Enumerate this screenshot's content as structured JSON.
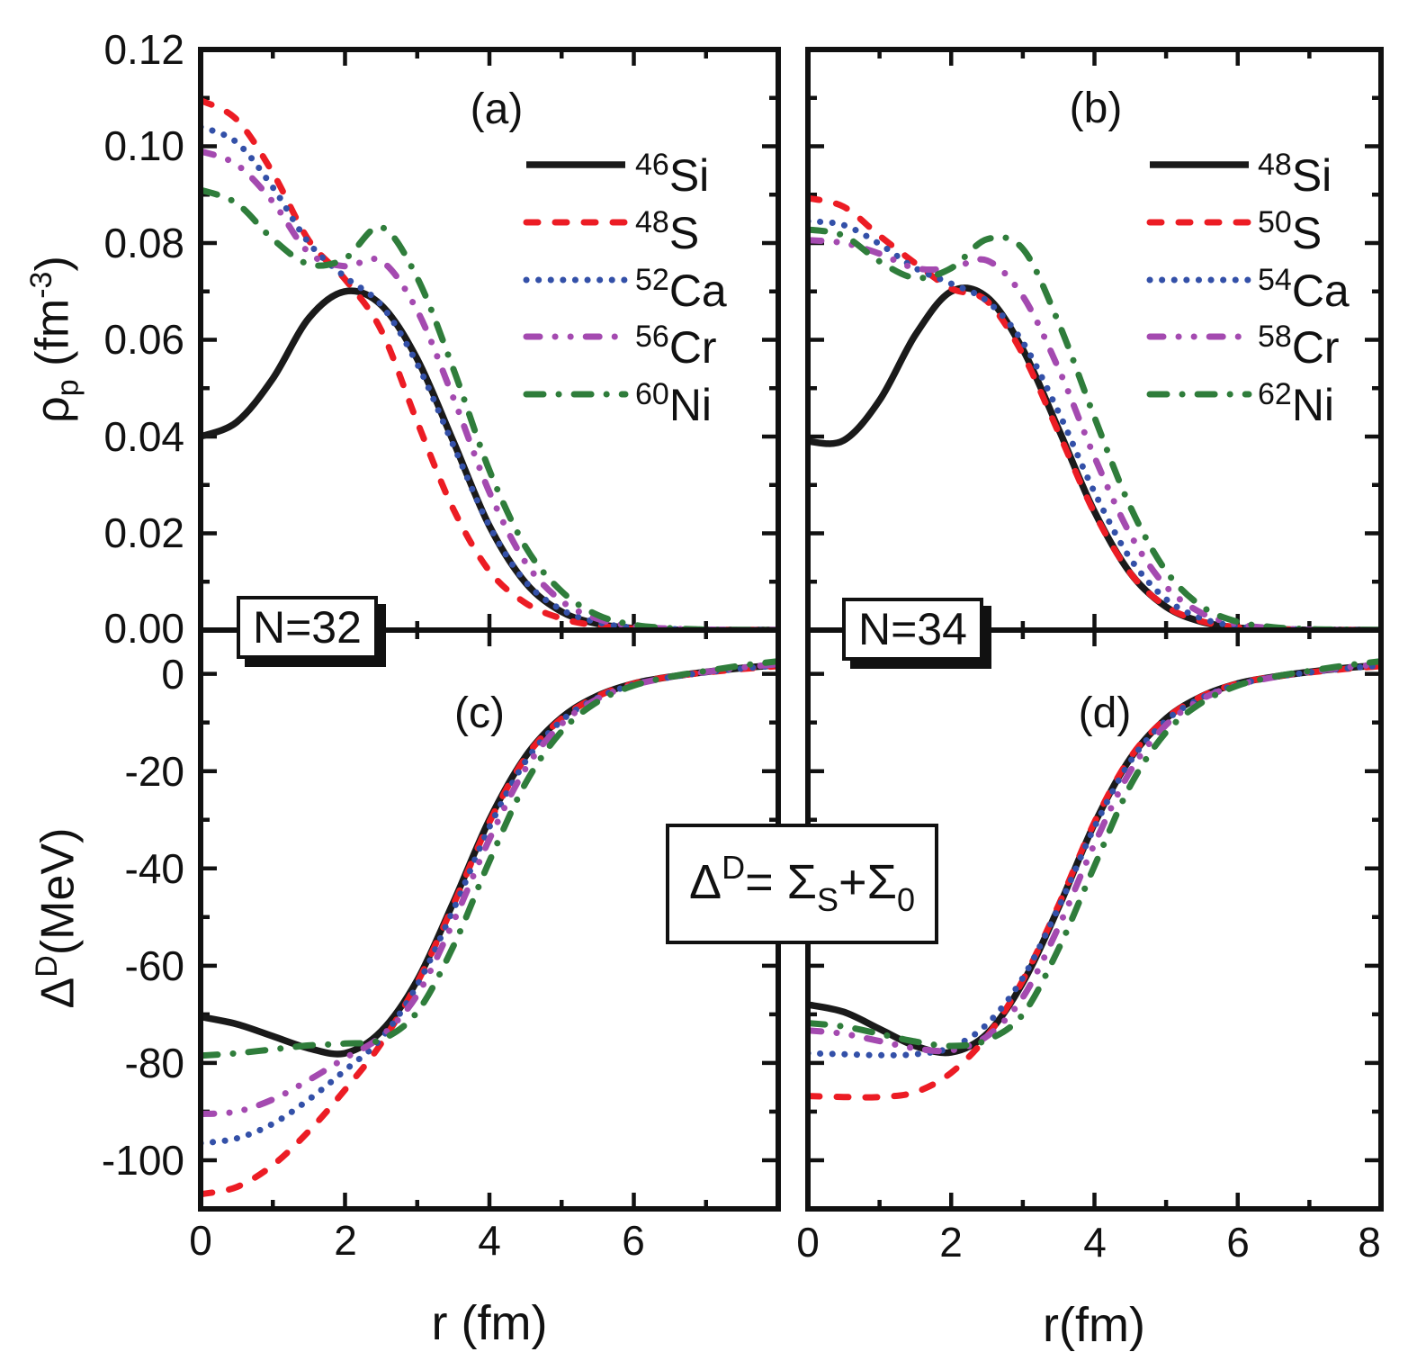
{
  "figure": {
    "panel_labels": {
      "a": "(a)",
      "b": "(b)",
      "c": "(c)",
      "d": "(d)"
    },
    "n32_label": "N=32",
    "n34_label": "N=34",
    "formula": {
      "delta": "Δ",
      "delta_sup": "D",
      "equals": "= ",
      "sigma_s": "Σ",
      "sigma_s_sub": "S",
      "plus": "+",
      "sigma_0": "Σ",
      "sigma_0_sub": "0"
    }
  },
  "axes": {
    "rho_ticks": [
      "0.12",
      "0.10",
      "0.08",
      "0.06",
      "0.04",
      "0.02",
      "0.00"
    ],
    "delta_ticks": [
      "0",
      "-20",
      "-40",
      "-60",
      "-80",
      "-100"
    ],
    "x_ticks_left": [
      "0",
      "2",
      "4",
      "6"
    ],
    "x_ticks_right": [
      "0",
      "2",
      "4",
      "6",
      "8"
    ],
    "rho_title": {
      "rho": "ρ",
      "sub": "p",
      "mid": " (fm",
      "sup": "-3",
      "end": ")"
    },
    "delta_title": {
      "delta": "Δ",
      "sup": "D",
      "rest": "(MeV)"
    },
    "x_title_left": "r (fm)",
    "x_title_right": "r(fm)"
  },
  "legend": {
    "n32": [
      {
        "mass": "46",
        "element": "Si"
      },
      {
        "mass": "48",
        "element": "S"
      },
      {
        "mass": "52",
        "element": "Ca"
      },
      {
        "mass": "56",
        "element": "Cr"
      },
      {
        "mass": "60",
        "element": "Ni"
      }
    ],
    "n34": [
      {
        "mass": "48",
        "element": "Si"
      },
      {
        "mass": "50",
        "element": "S"
      },
      {
        "mass": "54",
        "element": "Ca"
      },
      {
        "mass": "58",
        "element": "Cr"
      },
      {
        "mass": "62",
        "element": "Ni"
      }
    ]
  },
  "colors": {
    "si": "#1a1a1a",
    "s": "#ec1c24",
    "ca": "#3350a8",
    "cr": "#a44ab0",
    "ni": "#2f7d3b"
  },
  "chart_data": [
    {
      "type": "line",
      "panel_label": "(a)",
      "group": "N=32",
      "xlabel": "r (fm)",
      "ylabel": "rho_p (fm^-3)",
      "xlim": [
        0,
        8
      ],
      "ylim": [
        0,
        0.12
      ],
      "legend_position": "upper right",
      "x": [
        0,
        0.5,
        1,
        1.5,
        2,
        2.5,
        3,
        3.5,
        4,
        4.5,
        5,
        5.5,
        6,
        6.5,
        7,
        7.5,
        8
      ],
      "series": [
        {
          "name": "46Si",
          "color": "#1a1a1a",
          "style": "solid",
          "values": [
            0.04,
            0.043,
            0.052,
            0.0645,
            0.07,
            0.0672,
            0.056,
            0.039,
            0.0215,
            0.0098,
            0.0038,
            0.0013,
            0.0004,
            0.0001,
            0,
            0,
            0
          ]
        },
        {
          "name": "48S",
          "color": "#ec1c24",
          "style": "dashed",
          "values": [
            0.1095,
            0.1055,
            0.0945,
            0.0805,
            0.0725,
            0.062,
            0.043,
            0.025,
            0.0122,
            0.0056,
            0.0024,
            0.0009,
            0.0003,
            0.0001,
            0,
            0,
            0
          ]
        },
        {
          "name": "52Ca",
          "color": "#3350a8",
          "style": "dotted",
          "values": [
            0.104,
            0.1008,
            0.0915,
            0.08,
            0.073,
            0.0672,
            0.055,
            0.0382,
            0.0215,
            0.01,
            0.0042,
            0.0016,
            0.0005,
            0.0002,
            0.0001,
            0,
            0
          ]
        },
        {
          "name": "56Cr",
          "color": "#a44ab0",
          "style": "dashdotdot",
          "values": [
            0.099,
            0.0962,
            0.0885,
            0.078,
            0.0752,
            0.0763,
            0.066,
            0.048,
            0.0285,
            0.014,
            0.006,
            0.0023,
            0.0008,
            0.0003,
            0.0001,
            0,
            0
          ]
        },
        {
          "name": "60Ni",
          "color": "#2f7d3b",
          "style": "dashdot",
          "values": [
            0.091,
            0.0882,
            0.0808,
            0.0756,
            0.0768,
            0.0833,
            0.0728,
            0.054,
            0.033,
            0.0172,
            0.008,
            0.0031,
            0.0011,
            0.0004,
            0.0001,
            0,
            0
          ]
        }
      ]
    },
    {
      "type": "line",
      "panel_label": "(b)",
      "group": "N=34",
      "xlabel": "r(fm)",
      "ylabel": "rho_p (fm^-3)",
      "xlim": [
        0,
        8
      ],
      "ylim": [
        0,
        0.12
      ],
      "legend_position": "upper right",
      "x": [
        0,
        0.5,
        1,
        1.5,
        2,
        2.5,
        3,
        3.5,
        4,
        4.5,
        5,
        5.5,
        6,
        6.5,
        7,
        7.5,
        8
      ],
      "series": [
        {
          "name": "48Si",
          "color": "#1a1a1a",
          "style": "solid",
          "values": [
            0.039,
            0.0392,
            0.0475,
            0.061,
            0.07,
            0.0688,
            0.058,
            0.0415,
            0.0245,
            0.0118,
            0.0048,
            0.0017,
            0.0005,
            0.0002,
            0,
            0,
            0
          ]
        },
        {
          "name": "50S",
          "color": "#ec1c24",
          "style": "dashed",
          "values": [
            0.0893,
            0.0875,
            0.0815,
            0.0758,
            0.0706,
            0.068,
            0.057,
            0.0408,
            0.0242,
            0.0118,
            0.0049,
            0.0018,
            0.0006,
            0.0002,
            0,
            0,
            0
          ]
        },
        {
          "name": "54Ca",
          "color": "#3350a8",
          "style": "dotted",
          "values": [
            0.0845,
            0.0837,
            0.0798,
            0.0748,
            0.0716,
            0.068,
            0.0595,
            0.045,
            0.0285,
            0.0148,
            0.0064,
            0.0024,
            0.0008,
            0.0003,
            0.0001,
            0,
            0
          ]
        },
        {
          "name": "58Cr",
          "color": "#a44ab0",
          "style": "dashdotdot",
          "values": [
            0.0806,
            0.08,
            0.0778,
            0.0748,
            0.0748,
            0.0764,
            0.069,
            0.054,
            0.0358,
            0.0198,
            0.009,
            0.0035,
            0.0012,
            0.0004,
            0.0001,
            0,
            0
          ]
        },
        {
          "name": "62Ni",
          "color": "#2f7d3b",
          "style": "dashdot",
          "values": [
            0.0828,
            0.0815,
            0.0762,
            0.0728,
            0.0748,
            0.0808,
            0.0788,
            0.0635,
            0.044,
            0.0255,
            0.0122,
            0.0049,
            0.0017,
            0.0006,
            0.0002,
            0.0001,
            0
          ]
        }
      ]
    },
    {
      "type": "line",
      "panel_label": "(c)",
      "group": "N=32",
      "annotation": "Delta^D = Sigma_S + Sigma_0",
      "xlabel": "r (fm)",
      "ylabel": "Delta^D (MeV)",
      "xlim": [
        0,
        8
      ],
      "ylim": [
        -110,
        9
      ],
      "x": [
        0,
        0.5,
        1,
        1.5,
        2,
        2.5,
        3,
        3.5,
        4,
        4.5,
        5,
        5.5,
        6,
        6.5,
        7,
        7.5,
        8
      ],
      "series": [
        {
          "name": "46Si",
          "color": "#1a1a1a",
          "style": "solid",
          "values": [
            -70.5,
            -72.0,
            -74.5,
            -77.0,
            -78.0,
            -73.5,
            -63.0,
            -47.0,
            -30.0,
            -17.0,
            -9.0,
            -4.5,
            -2.0,
            -0.6,
            0.4,
            1.2,
            1.8
          ]
        },
        {
          "name": "48S",
          "color": "#ec1c24",
          "style": "dashed",
          "values": [
            -107.0,
            -105.5,
            -101.0,
            -94.0,
            -85.5,
            -76.0,
            -63.5,
            -47.5,
            -30.5,
            -17.2,
            -9.2,
            -4.6,
            -2.0,
            -0.6,
            0.3,
            1.0,
            1.6
          ]
        },
        {
          "name": "52Ca",
          "color": "#3350a8",
          "style": "dotted",
          "values": [
            -96.5,
            -95.5,
            -92.5,
            -87.5,
            -81.5,
            -75.0,
            -64.0,
            -48.5,
            -31.5,
            -18.0,
            -9.6,
            -4.9,
            -2.2,
            -0.7,
            0.3,
            1.1,
            1.7
          ]
        },
        {
          "name": "56Cr",
          "color": "#a44ab0",
          "style": "dashdotdot",
          "values": [
            -90.5,
            -90.0,
            -87.5,
            -83.5,
            -79.0,
            -74.5,
            -66.0,
            -51.0,
            -34.0,
            -19.5,
            -10.3,
            -5.1,
            -2.3,
            -0.7,
            0.4,
            1.3,
            2.0
          ]
        },
        {
          "name": "60Ni",
          "color": "#2f7d3b",
          "style": "dashdot",
          "values": [
            -78.5,
            -78.0,
            -77.2,
            -76.4,
            -76.0,
            -75.2,
            -69.5,
            -56.0,
            -38.5,
            -22.5,
            -11.8,
            -5.7,
            -2.4,
            -0.6,
            0.6,
            1.7,
            2.6
          ]
        }
      ]
    },
    {
      "type": "line",
      "panel_label": "(d)",
      "group": "N=34",
      "annotation": "Delta^D = Sigma_S + Sigma_0",
      "xlabel": "r(fm)",
      "ylabel": "Delta^D (MeV)",
      "xlim": [
        0,
        8
      ],
      "ylim": [
        -110,
        9
      ],
      "x": [
        0,
        0.5,
        1,
        1.5,
        2,
        2.5,
        3,
        3.5,
        4,
        4.5,
        5,
        5.5,
        6,
        6.5,
        7,
        7.5,
        8
      ],
      "series": [
        {
          "name": "48Si",
          "color": "#1a1a1a",
          "style": "solid",
          "values": [
            -68.0,
            -69.5,
            -73.0,
            -76.5,
            -77.8,
            -74.0,
            -63.5,
            -48.0,
            -30.8,
            -17.4,
            -9.2,
            -4.6,
            -2.0,
            -0.6,
            0.4,
            1.2,
            1.8
          ]
        },
        {
          "name": "50S",
          "color": "#ec1c24",
          "style": "dashed",
          "values": [
            -86.8,
            -87.0,
            -87.0,
            -86.0,
            -82.0,
            -74.5,
            -63.0,
            -47.5,
            -30.5,
            -17.2,
            -9.2,
            -4.6,
            -2.0,
            -0.6,
            0.3,
            1.0,
            1.6
          ]
        },
        {
          "name": "54Ca",
          "color": "#3350a8",
          "style": "dotted",
          "values": [
            -78.0,
            -78.2,
            -78.4,
            -78.2,
            -76.8,
            -72.0,
            -62.5,
            -48.0,
            -31.5,
            -18.0,
            -9.6,
            -4.9,
            -2.2,
            -0.7,
            0.3,
            1.1,
            1.7
          ]
        },
        {
          "name": "58Cr",
          "color": "#a44ab0",
          "style": "dashdotdot",
          "values": [
            -73.3,
            -74.0,
            -75.5,
            -77.0,
            -77.4,
            -74.5,
            -66.5,
            -52.0,
            -35.0,
            -20.0,
            -10.5,
            -5.2,
            -2.3,
            -0.7,
            0.4,
            1.3,
            2.0
          ]
        },
        {
          "name": "62Ni",
          "color": "#2f7d3b",
          "style": "dashdot",
          "values": [
            -71.8,
            -72.5,
            -74.0,
            -75.6,
            -76.5,
            -75.3,
            -70.0,
            -56.5,
            -39.5,
            -23.0,
            -12.0,
            -5.9,
            -2.4,
            -0.6,
            0.6,
            1.7,
            2.6
          ]
        }
      ]
    }
  ]
}
